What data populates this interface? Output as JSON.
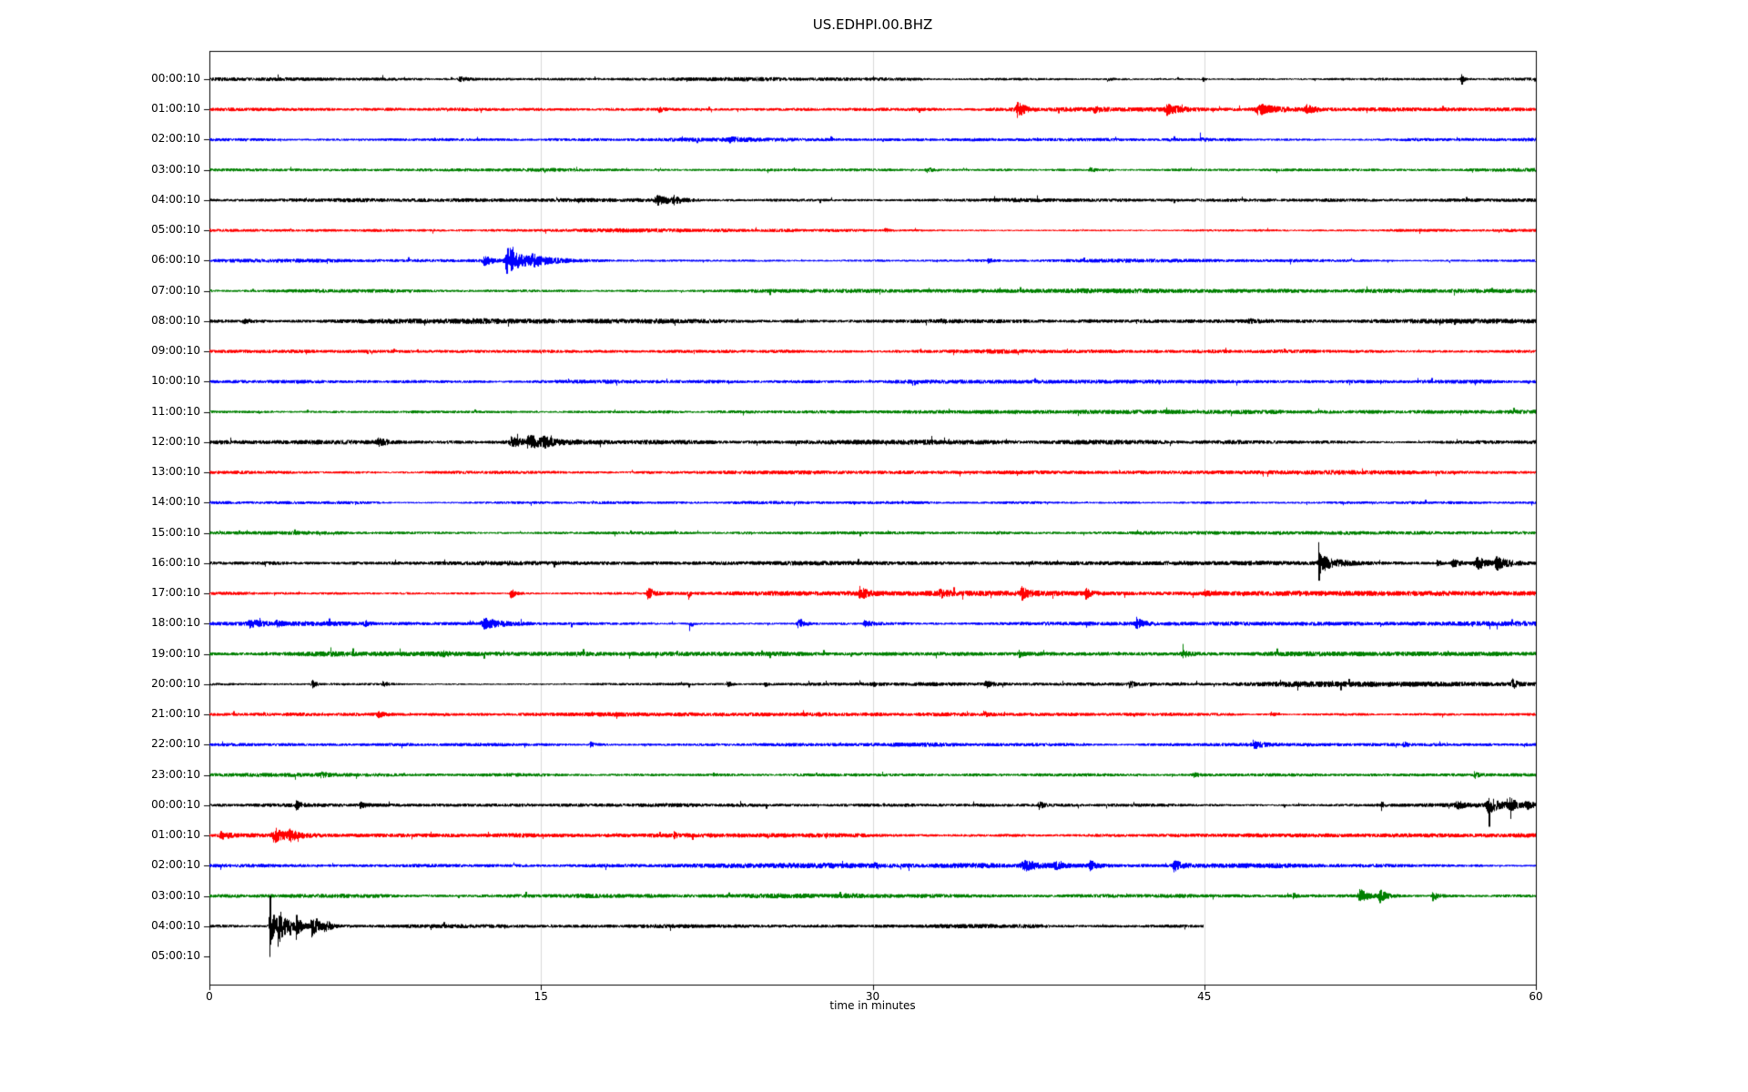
{
  "chart_data": {
    "type": "line",
    "subtype": "helicorder-seismogram",
    "title": "US.EDHPI.00.BHZ",
    "xlabel": "time in minutes",
    "x_range": [
      0,
      60
    ],
    "x_ticks": [
      "0",
      "15",
      "30",
      "45",
      "60"
    ],
    "grid": {
      "vertical_ticks_minutes": [
        15,
        30,
        45
      ],
      "color": "#d9d9d9"
    },
    "trace_colors_cycle": [
      "#000000",
      "#ff0000",
      "#0000ff",
      "#008000"
    ],
    "rows": [
      {
        "label": "00:00:10",
        "color": "#000000",
        "coverage": 1,
        "noise": 1.7,
        "events": [
          {
            "t": 11.3,
            "dur": 0.5,
            "amp": 2.5
          },
          {
            "t": 40.6,
            "dur": 0.2,
            "amp": 2.0
          },
          {
            "t": 44.9,
            "dur": 0.1,
            "amp": 2.5
          },
          {
            "t": 56.6,
            "dur": 0.1,
            "amp": 6.0
          }
        ]
      },
      {
        "label": "01:00:10",
        "color": "#ff0000",
        "coverage": 1,
        "noise": 1.7,
        "events": [
          {
            "t": 20.3,
            "dur": 0.15,
            "amp": 3.0
          },
          {
            "t": 36.5,
            "dur": 0.3,
            "amp": 8.0
          },
          {
            "t": 40.0,
            "dur": 0.2,
            "amp": 3.5
          },
          {
            "t": 43.3,
            "dur": 0.6,
            "amp": 4.5
          },
          {
            "t": 47.4,
            "dur": 0.8,
            "amp": 5.5
          },
          {
            "t": 49.6,
            "dur": 0.4,
            "amp": 4.0
          }
        ]
      },
      {
        "label": "02:00:10",
        "color": "#0000ff",
        "coverage": 1,
        "noise": 1.7,
        "events": [
          {
            "t": 23.5,
            "dur": 0.3,
            "amp": 2.2
          },
          {
            "t": 44.8,
            "dur": 0.2,
            "amp": 2.0
          }
        ]
      },
      {
        "label": "03:00:10",
        "color": "#008000",
        "coverage": 1,
        "noise": 1.7,
        "events": [
          {
            "t": 32.4,
            "dur": 0.25,
            "amp": 3.5
          },
          {
            "t": 39.8,
            "dur": 0.3,
            "amp": 2.5
          }
        ]
      },
      {
        "label": "04:00:10",
        "color": "#000000",
        "coverage": 1,
        "noise": 1.6,
        "events": [
          {
            "t": 20.2,
            "dur": 0.6,
            "amp": 4.5
          },
          {
            "t": 21.0,
            "dur": 0.3,
            "amp": 3.0
          },
          {
            "t": 43.6,
            "dur": 0.08,
            "amp": 4.0,
            "skew": -1
          }
        ]
      },
      {
        "label": "05:00:10",
        "color": "#ff0000",
        "coverage": 1,
        "noise": 1.7,
        "events": [
          {
            "t": 30.5,
            "dur": 0.2,
            "amp": 2.0
          }
        ]
      },
      {
        "label": "06:00:10",
        "color": "#0000ff",
        "coverage": 1,
        "noise": 1.7,
        "events": [
          {
            "t": 12.4,
            "dur": 0.3,
            "amp": 5.0
          },
          {
            "t": 13.4,
            "dur": 0.15,
            "amp": 16.0
          },
          {
            "t": 13.6,
            "dur": 1.1,
            "amp": 9.0
          },
          {
            "t": 14.6,
            "dur": 0.4,
            "amp": 4.0
          },
          {
            "t": 35.2,
            "dur": 0.15,
            "amp": 3.0
          }
        ]
      },
      {
        "label": "07:00:10",
        "color": "#008000",
        "coverage": 1,
        "noise": 1.7,
        "events": []
      },
      {
        "label": "08:00:10",
        "color": "#000000",
        "coverage": 1,
        "noise": 1.9,
        "events": [
          {
            "t": 1.5,
            "dur": 0.3,
            "amp": 2.0
          },
          {
            "t": 47.0,
            "dur": 0.2,
            "amp": 2.0
          }
        ]
      },
      {
        "label": "09:00:10",
        "color": "#ff0000",
        "coverage": 1,
        "noise": 1.7,
        "events": []
      },
      {
        "label": "10:00:10",
        "color": "#0000ff",
        "coverage": 1,
        "noise": 1.7,
        "events": [
          {
            "t": 31.8,
            "dur": 0.12,
            "amp": 4.5,
            "skew": -1
          }
        ]
      },
      {
        "label": "11:00:10",
        "color": "#008000",
        "coverage": 1,
        "noise": 1.7,
        "events": []
      },
      {
        "label": "12:00:10",
        "color": "#000000",
        "coverage": 1,
        "noise": 2.2,
        "events": [
          {
            "t": 7.6,
            "dur": 0.3,
            "amp": 3.0
          },
          {
            "t": 13.6,
            "dur": 0.5,
            "amp": 5.0
          },
          {
            "t": 14.4,
            "dur": 0.6,
            "amp": 6.0
          },
          {
            "t": 15.1,
            "dur": 0.3,
            "amp": 4.0
          }
        ]
      },
      {
        "label": "13:00:10",
        "color": "#ff0000",
        "coverage": 1,
        "noise": 1.8,
        "events": []
      },
      {
        "label": "14:00:10",
        "color": "#0000ff",
        "coverage": 1,
        "noise": 1.7,
        "events": []
      },
      {
        "label": "15:00:10",
        "color": "#008000",
        "coverage": 1,
        "noise": 1.7,
        "events": []
      },
      {
        "label": "16:00:10",
        "color": "#000000",
        "coverage": 1,
        "noise": 1.7,
        "events": [
          {
            "t": 50.15,
            "dur": 0.09,
            "amp": 26.0
          },
          {
            "t": 50.4,
            "dur": 0.7,
            "amp": 6.0
          },
          {
            "t": 55.5,
            "dur": 0.15,
            "amp": 3.0
          },
          {
            "t": 56.2,
            "dur": 0.3,
            "amp": 4.0
          },
          {
            "t": 57.3,
            "dur": 0.6,
            "amp": 6.0
          },
          {
            "t": 58.2,
            "dur": 0.5,
            "amp": 6.0
          }
        ]
      },
      {
        "label": "17:00:10",
        "color": "#ff0000",
        "coverage": 1,
        "noise": 2.0,
        "events": [
          {
            "t": 13.6,
            "dur": 0.2,
            "amp": 6.0
          },
          {
            "t": 19.8,
            "dur": 0.25,
            "amp": 7.0
          },
          {
            "t": 21.6,
            "dur": 0.08,
            "amp": 11.0,
            "skew": -1
          },
          {
            "t": 29.4,
            "dur": 0.3,
            "amp": 7.0
          },
          {
            "t": 33.0,
            "dur": 0.25,
            "amp": 4.0
          },
          {
            "t": 36.7,
            "dur": 0.3,
            "amp": 6.0
          },
          {
            "t": 39.6,
            "dur": 0.25,
            "amp": 5.0
          },
          {
            "t": 45.0,
            "dur": 0.2,
            "amp": 3.0
          }
        ]
      },
      {
        "label": "18:00:10",
        "color": "#0000ff",
        "coverage": 1,
        "noise": 2.2,
        "events": [
          {
            "t": 1.8,
            "dur": 0.6,
            "amp": 4.0
          },
          {
            "t": 3.0,
            "dur": 0.3,
            "amp": 3.0
          },
          {
            "t": 7.0,
            "dur": 0.3,
            "amp": 3.0
          },
          {
            "t": 12.4,
            "dur": 0.8,
            "amp": 5.0
          },
          {
            "t": 21.7,
            "dur": 0.1,
            "amp": 10.0,
            "skew": -1
          },
          {
            "t": 26.6,
            "dur": 0.3,
            "amp": 4.0
          },
          {
            "t": 29.6,
            "dur": 0.3,
            "amp": 4.0
          },
          {
            "t": 41.9,
            "dur": 0.25,
            "amp": 6.0
          }
        ]
      },
      {
        "label": "19:00:10",
        "color": "#008000",
        "coverage": 1,
        "noise": 1.8,
        "events": [
          {
            "t": 10.5,
            "dur": 0.2,
            "amp": 2.0
          },
          {
            "t": 36.6,
            "dur": 0.2,
            "amp": 3.0
          },
          {
            "t": 44.0,
            "dur": 0.3,
            "amp": 3.5
          }
        ]
      },
      {
        "label": "20:00:10",
        "color": "#000000",
        "coverage": 1,
        "noise": 1.7,
        "events": [
          {
            "t": 4.6,
            "dur": 0.15,
            "amp": 6.0
          },
          {
            "t": 7.8,
            "dur": 0.2,
            "amp": 3.0
          },
          {
            "t": 23.4,
            "dur": 0.15,
            "amp": 3.5
          },
          {
            "t": 25.1,
            "dur": 0.15,
            "amp": 3.0
          },
          {
            "t": 30.0,
            "dur": 0.1,
            "amp": 2.5
          },
          {
            "t": 35.1,
            "dur": 0.2,
            "amp": 4.5
          },
          {
            "t": 41.6,
            "dur": 0.2,
            "amp": 4.0
          },
          {
            "t": 58.9,
            "dur": 0.2,
            "amp": 5.0
          }
        ]
      },
      {
        "label": "21:00:10",
        "color": "#ff0000",
        "coverage": 1,
        "noise": 1.7,
        "events": [
          {
            "t": 7.6,
            "dur": 0.2,
            "amp": 3.0
          },
          {
            "t": 35.0,
            "dur": 0.15,
            "amp": 3.0
          },
          {
            "t": 48.0,
            "dur": 0.2,
            "amp": 2.5
          }
        ]
      },
      {
        "label": "22:00:10",
        "color": "#0000ff",
        "coverage": 1,
        "noise": 1.7,
        "events": [
          {
            "t": 17.2,
            "dur": 0.2,
            "amp": 3.0
          },
          {
            "t": 47.2,
            "dur": 0.3,
            "amp": 4.5
          },
          {
            "t": 54.0,
            "dur": 0.2,
            "amp": 2.5
          }
        ]
      },
      {
        "label": "23:00:10",
        "color": "#008000",
        "coverage": 1,
        "noise": 1.7,
        "events": [
          {
            "t": 5.0,
            "dur": 0.2,
            "amp": 2.5
          },
          {
            "t": 44.5,
            "dur": 0.2,
            "amp": 2.5
          },
          {
            "t": 57.2,
            "dur": 0.15,
            "amp": 3.5
          }
        ]
      },
      {
        "label": "00:00:10",
        "color": "#000000",
        "coverage": 1,
        "noise": 1.8,
        "events": [
          {
            "t": 3.9,
            "dur": 0.2,
            "amp": 4.0
          },
          {
            "t": 6.8,
            "dur": 0.15,
            "amp": 3.0
          },
          {
            "t": 37.5,
            "dur": 0.2,
            "amp": 4.5
          },
          {
            "t": 53.0,
            "dur": 0.1,
            "amp": 3.0
          },
          {
            "t": 56.4,
            "dur": 0.3,
            "amp": 4.0
          },
          {
            "t": 57.8,
            "dur": 0.4,
            "amp": 9.0
          },
          {
            "t": 58.8,
            "dur": 0.3,
            "amp": 6.0
          },
          {
            "t": 59.5,
            "dur": 0.2,
            "amp": 5.0
          }
        ]
      },
      {
        "label": "01:00:10",
        "color": "#ff0000",
        "coverage": 1,
        "noise": 1.9,
        "events": [
          {
            "t": 0.5,
            "dur": 0.4,
            "amp": 4.0
          },
          {
            "t": 2.9,
            "dur": 0.5,
            "amp": 8.0
          },
          {
            "t": 3.6,
            "dur": 0.3,
            "amp": 5.0
          },
          {
            "t": 21.0,
            "dur": 0.1,
            "amp": 2.5
          }
        ]
      },
      {
        "label": "02:00:10",
        "color": "#0000ff",
        "coverage": 1,
        "noise": 1.8,
        "events": [
          {
            "t": 30.0,
            "dur": 0.15,
            "amp": 2.5
          },
          {
            "t": 36.8,
            "dur": 0.6,
            "amp": 6.0
          },
          {
            "t": 38.2,
            "dur": 0.3,
            "amp": 4.0
          },
          {
            "t": 39.8,
            "dur": 0.3,
            "amp": 4.5
          },
          {
            "t": 43.6,
            "dur": 0.3,
            "amp": 6.0
          }
        ]
      },
      {
        "label": "03:00:10",
        "color": "#008000",
        "coverage": 1,
        "noise": 1.8,
        "events": [
          {
            "t": 49.0,
            "dur": 0.1,
            "amp": 2.5
          },
          {
            "t": 52.0,
            "dur": 0.4,
            "amp": 7.0
          },
          {
            "t": 52.9,
            "dur": 0.3,
            "amp": 6.0
          },
          {
            "t": 55.3,
            "dur": 0.25,
            "amp": 5.0
          }
        ]
      },
      {
        "label": "04:00:10",
        "color": "#000000",
        "coverage": 0.75,
        "noise": 1.7,
        "events": [
          {
            "t": 2.7,
            "dur": 0.15,
            "amp": 40.0
          },
          {
            "t": 3.1,
            "dur": 0.4,
            "amp": 18.0
          },
          {
            "t": 3.9,
            "dur": 0.2,
            "amp": 12.0
          },
          {
            "t": 4.6,
            "dur": 0.3,
            "amp": 14.0
          },
          {
            "t": 5.2,
            "dur": 0.2,
            "amp": 8.0
          }
        ]
      },
      {
        "label": "05:00:10",
        "color": "#ff0000",
        "coverage": 0,
        "noise": 0,
        "events": []
      }
    ]
  }
}
